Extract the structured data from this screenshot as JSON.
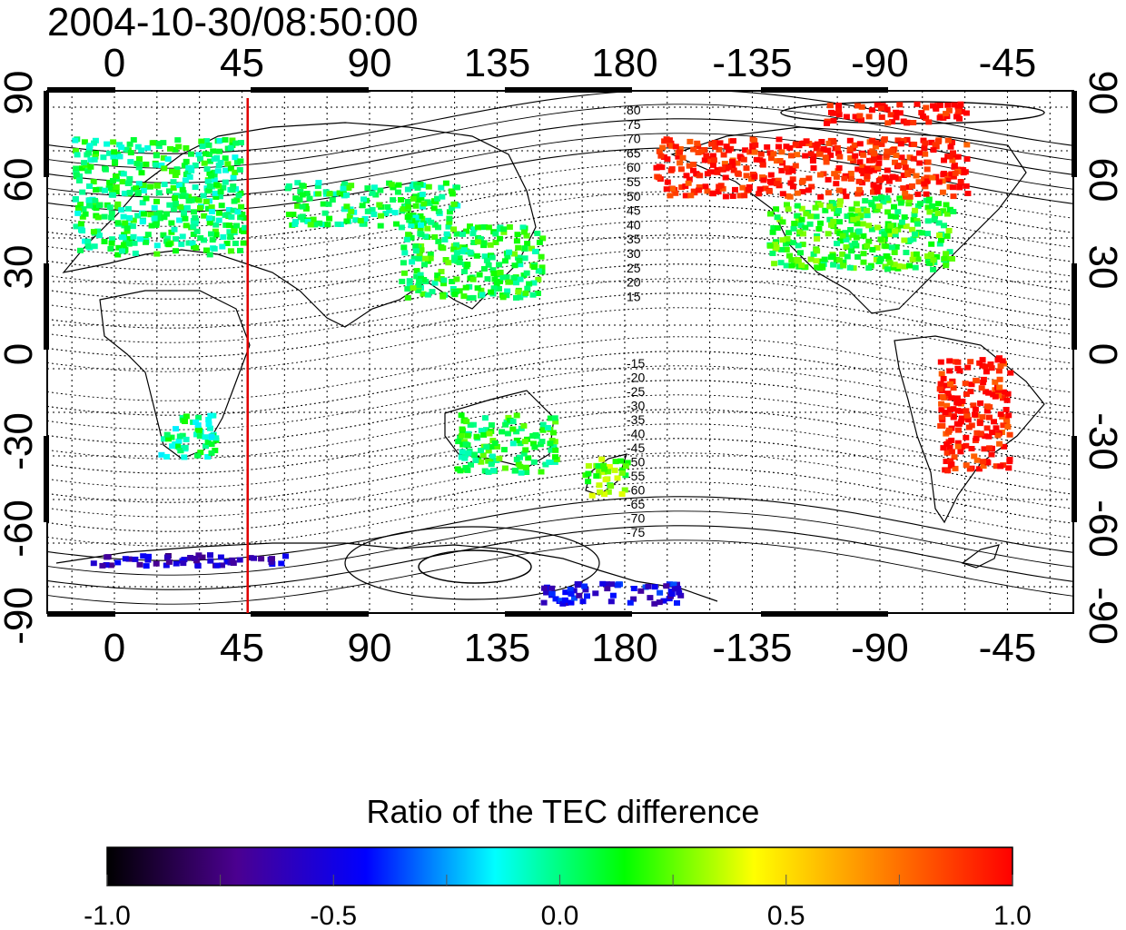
{
  "title": "2004-10-30/08:50:00",
  "axes": {
    "longitude_ticks": [
      "0",
      "45",
      "90",
      "135",
      "180",
      "-135",
      "-90",
      "-45"
    ],
    "latitude_ticks": [
      "90",
      "60",
      "30",
      "0",
      "-30",
      "-60",
      "-90"
    ]
  },
  "reference_line": {
    "longitude": 47,
    "color": "#e00000"
  },
  "contour_labels_north": [
    "80",
    "75",
    "70",
    "65",
    "60",
    "55",
    "50",
    "45",
    "40",
    "35",
    "30",
    "25",
    "20",
    "15"
  ],
  "contour_labels_south": [
    "-15",
    "-20",
    "-25",
    "-30",
    "-35",
    "-40",
    "-45",
    "-50",
    "-55",
    "-60",
    "-65",
    "-70",
    "-75"
  ],
  "colorbar": {
    "title": "Ratio of the TEC difference",
    "min": -1.0,
    "max": 1.0,
    "tick_labels": [
      "-1.0",
      "-0.5",
      "0.0",
      "0.5",
      "1.0"
    ],
    "colors": [
      "#000000",
      "#4b0090",
      "#0000ff",
      "#00ffff",
      "#00ff00",
      "#ffff00",
      "#ff8000",
      "#ff0000"
    ]
  },
  "data_regions": [
    {
      "name": "europe",
      "lon": [
        -15,
        45
      ],
      "lat": [
        35,
        75
      ],
      "ratio": 0.05
    },
    {
      "name": "asia-east",
      "lon": [
        100,
        150
      ],
      "lat": [
        20,
        45
      ],
      "ratio": 0.1
    },
    {
      "name": "siberia",
      "lon": [
        60,
        120
      ],
      "lat": [
        45,
        60
      ],
      "ratio": 0.05
    },
    {
      "name": "north-america",
      "lon": [
        -130,
        -65
      ],
      "lat": [
        30,
        55
      ],
      "ratio": 0.15
    },
    {
      "name": "canada-alaska",
      "lon": [
        -170,
        -60
      ],
      "lat": [
        55,
        75
      ],
      "ratio": 0.95
    },
    {
      "name": "arctic-cap",
      "lon": [
        -110,
        -60
      ],
      "lat": [
        80,
        87
      ],
      "ratio": 1.0
    },
    {
      "name": "south-america",
      "lon": [
        -70,
        -45
      ],
      "lat": [
        -40,
        0
      ],
      "ratio": 0.95
    },
    {
      "name": "australia",
      "lon": [
        120,
        155
      ],
      "lat": [
        -40,
        -20
      ],
      "ratio": 0.1
    },
    {
      "name": "new-zealand",
      "lon": [
        165,
        180
      ],
      "lat": [
        -48,
        -35
      ],
      "ratio": 0.25
    },
    {
      "name": "antarctic-belt",
      "lon": [
        -10,
        60
      ],
      "lat": [
        -72,
        -68
      ],
      "ratio": -0.6
    },
    {
      "name": "antarctic-pacific",
      "lon": [
        150,
        200
      ],
      "lat": [
        -85,
        -78
      ],
      "ratio": -0.5
    },
    {
      "name": "africa-south",
      "lon": [
        15,
        35
      ],
      "lat": [
        -35,
        -20
      ],
      "ratio": 0.0
    }
  ]
}
